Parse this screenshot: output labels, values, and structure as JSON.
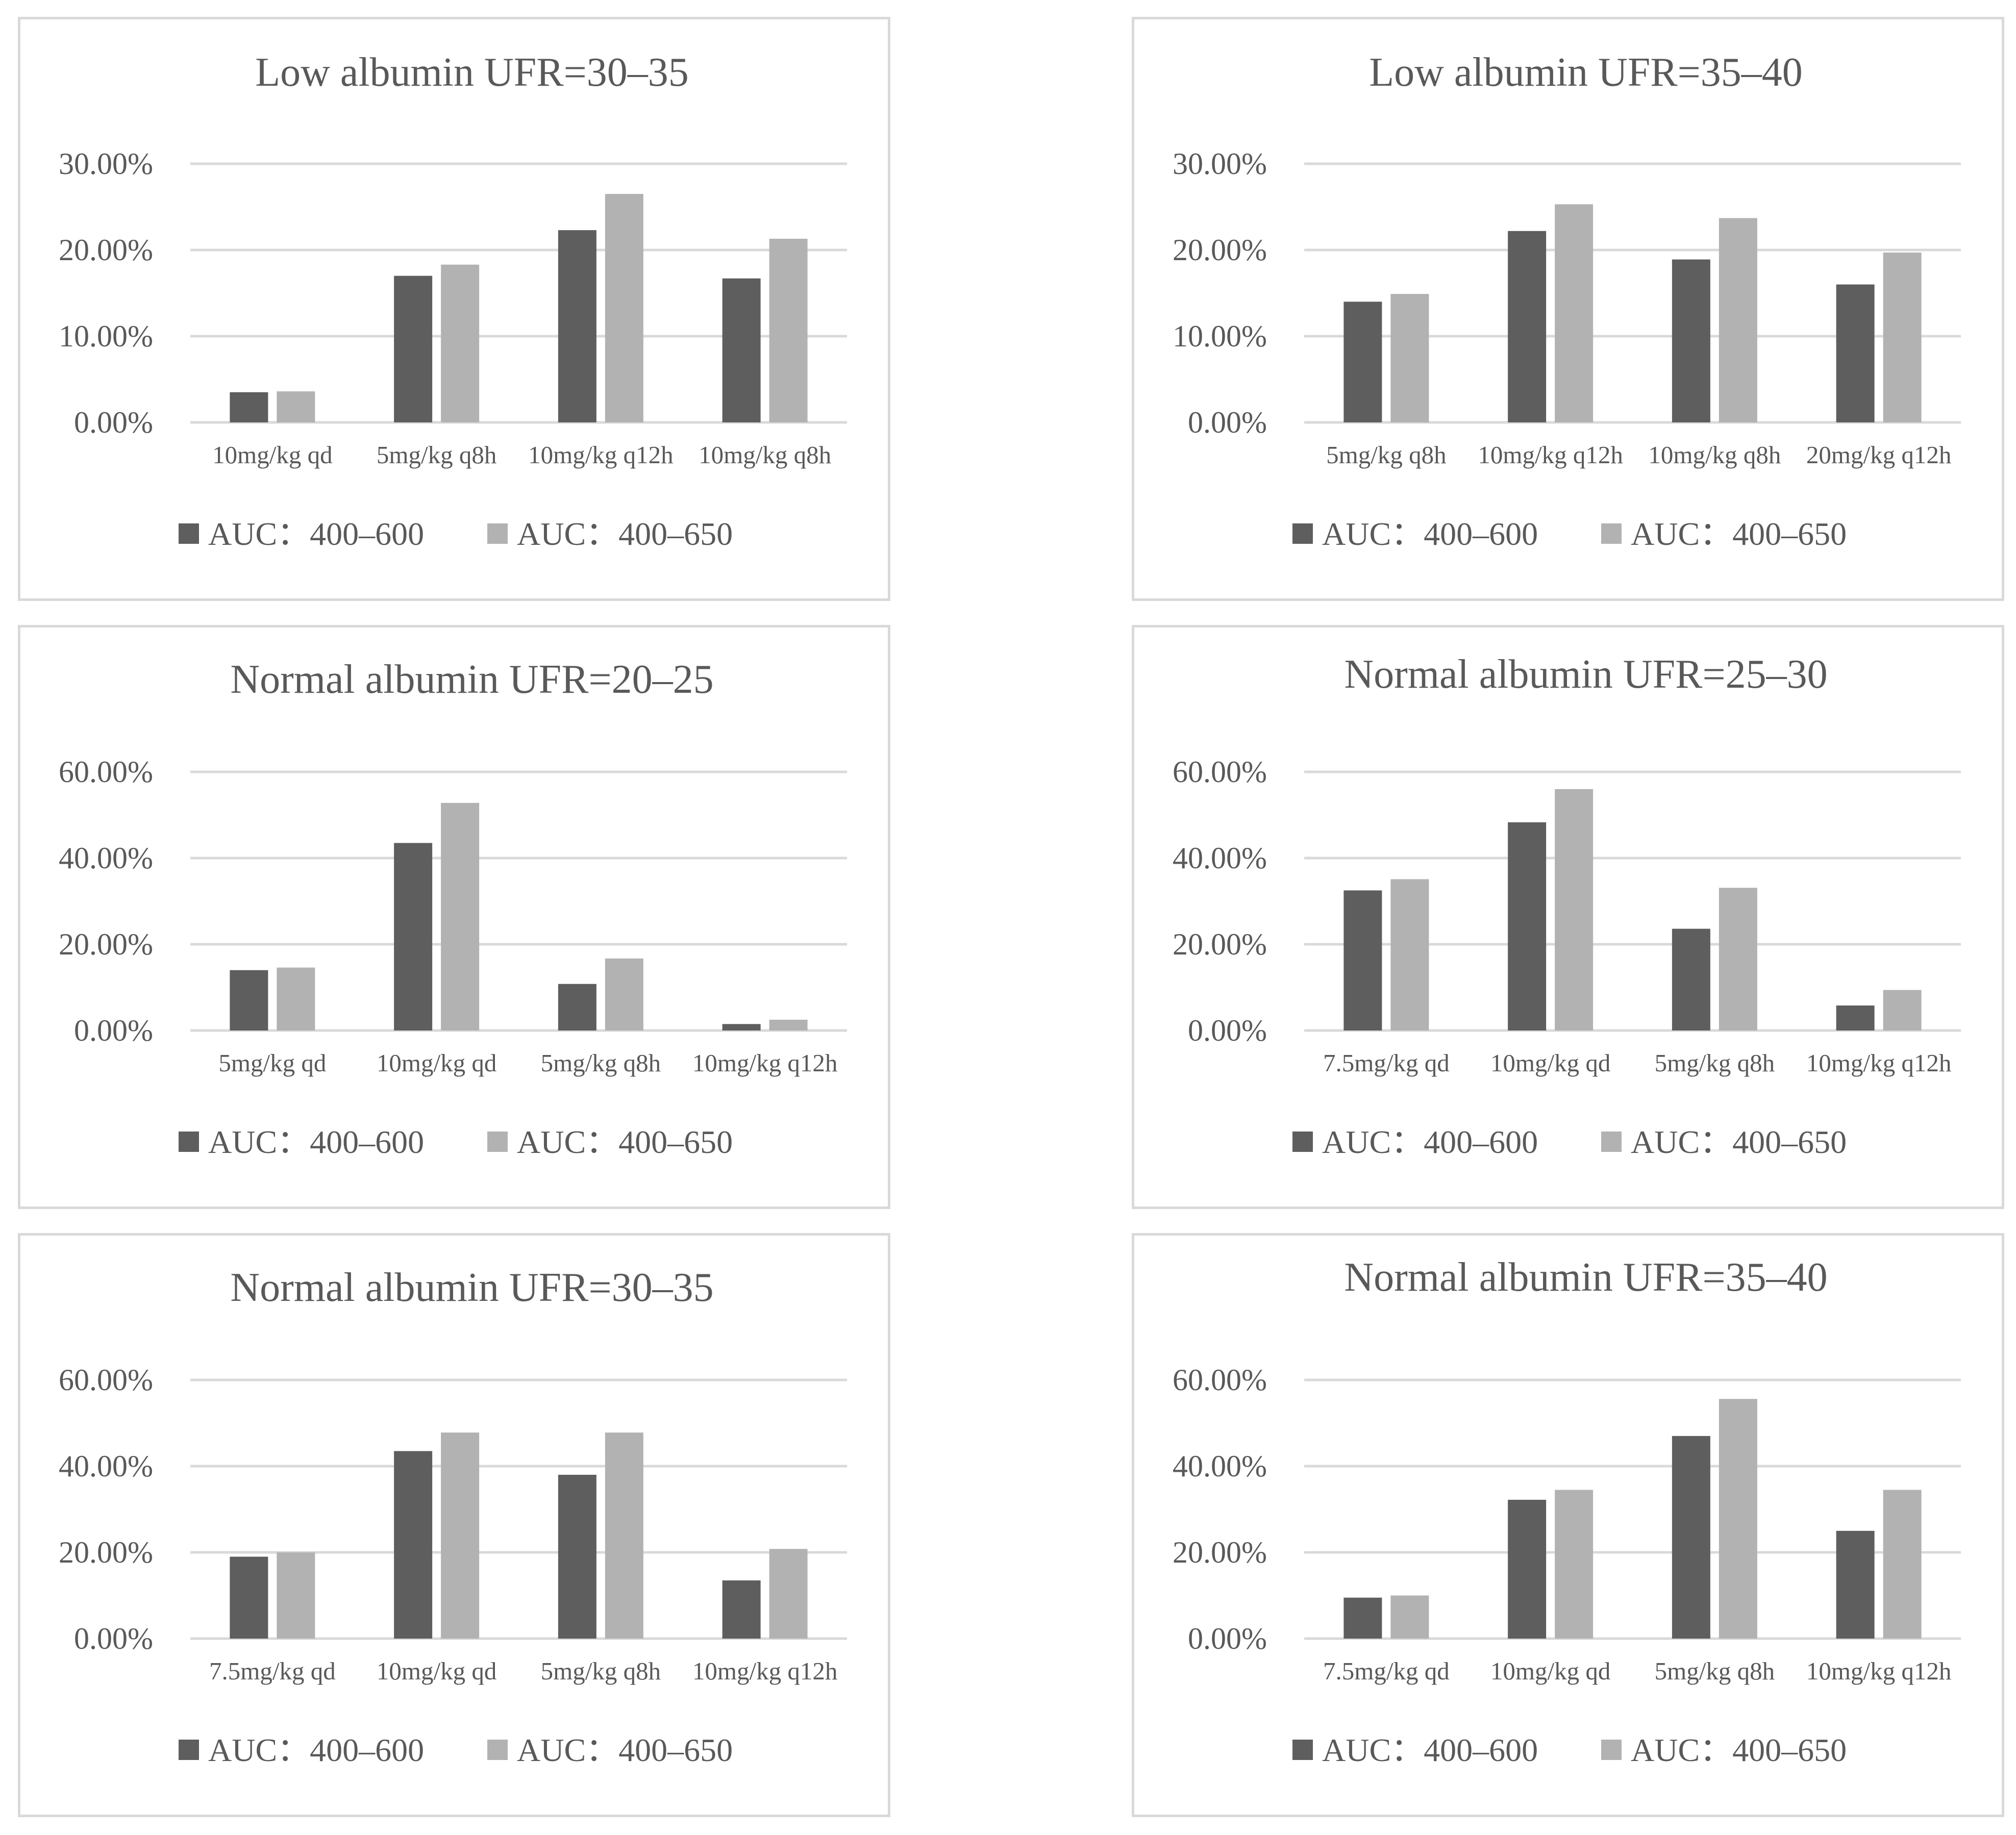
{
  "legend": [
    "AUC：400–600",
    "AUC：400–650"
  ],
  "colors": {
    "series_a": "#5e5e5e",
    "series_b": "#b2b2b2",
    "grid": "#d9d9d9",
    "text": "#595959",
    "border": "#d9d9d9"
  },
  "chart_data": [
    {
      "type": "bar",
      "title": "Low albumin UFR=30–35",
      "categories": [
        "10mg/kg qd",
        "5mg/kg q8h",
        "10mg/kg q12h",
        "10mg/kg q8h"
      ],
      "yticks": [
        "0.00%",
        "10.00%",
        "20.00%",
        "30.00%"
      ],
      "ylim": [
        0,
        30
      ],
      "series": [
        {
          "name": "AUC：400–600",
          "values": [
            3.5,
            17.0,
            22.3,
            16.7
          ]
        },
        {
          "name": "AUC：400–650",
          "values": [
            3.6,
            18.3,
            26.5,
            21.3
          ]
        }
      ]
    },
    {
      "type": "bar",
      "title": "Low albumin UFR=35–40",
      "categories": [
        "5mg/kg q8h",
        "10mg/kg q12h",
        "10mg/kg q8h",
        "20mg/kg q12h"
      ],
      "yticks": [
        "0.00%",
        "10.00%",
        "20.00%",
        "30.00%"
      ],
      "ylim": [
        0,
        30
      ],
      "series": [
        {
          "name": "AUC：400–600",
          "values": [
            14.0,
            22.2,
            18.9,
            16.0
          ]
        },
        {
          "name": "AUC：400–650",
          "values": [
            14.9,
            25.3,
            23.7,
            19.7
          ]
        }
      ]
    },
    {
      "type": "bar",
      "title": "Normal albumin UFR=20–25",
      "categories": [
        "5mg/kg qd",
        "10mg/kg qd",
        "5mg/kg q8h",
        "10mg/kg q12h"
      ],
      "yticks": [
        "0.00%",
        "20.00%",
        "40.00%",
        "60.00%"
      ],
      "ylim": [
        0,
        60
      ],
      "series": [
        {
          "name": "AUC：400–600",
          "values": [
            14.0,
            43.5,
            10.8,
            1.5
          ]
        },
        {
          "name": "AUC：400–650",
          "values": [
            14.6,
            52.8,
            16.7,
            2.5
          ]
        }
      ]
    },
    {
      "type": "bar",
      "title": "Normal albumin UFR=25–30",
      "categories": [
        "7.5mg/kg qd",
        "10mg/kg qd",
        "5mg/kg q8h",
        "10mg/kg q12h"
      ],
      "yticks": [
        "0.00%",
        "20.00%",
        "40.00%",
        "60.00%"
      ],
      "ylim": [
        0,
        60
      ],
      "series": [
        {
          "name": "AUC：400–600",
          "values": [
            32.5,
            48.3,
            23.6,
            5.8
          ]
        },
        {
          "name": "AUC：400–650",
          "values": [
            35.1,
            56.0,
            33.1,
            9.4
          ]
        }
      ]
    },
    {
      "type": "bar",
      "title": "Normal albumin UFR=30–35",
      "categories": [
        "7.5mg/kg qd",
        "10mg/kg qd",
        "5mg/kg q8h",
        "10mg/kg q12h"
      ],
      "yticks": [
        "0.00%",
        "20.00%",
        "40.00%",
        "60.00%"
      ],
      "ylim": [
        0,
        60
      ],
      "series": [
        {
          "name": "AUC：400–600",
          "values": [
            19.0,
            43.5,
            38.0,
            13.5
          ]
        },
        {
          "name": "AUC：400–650",
          "values": [
            20.0,
            47.8,
            47.8,
            20.8
          ]
        }
      ]
    },
    {
      "type": "bar",
      "title": "Normal albumin UFR=35–40",
      "categories": [
        "7.5mg/kg qd",
        "10mg/kg qd",
        "5mg/kg q8h",
        "10mg/kg q12h"
      ],
      "yticks": [
        "0.00%",
        "20.00%",
        "40.00%",
        "60.00%"
      ],
      "ylim": [
        0,
        60
      ],
      "series": [
        {
          "name": "AUC：400–600",
          "values": [
            9.5,
            32.2,
            47.0,
            25.0
          ]
        },
        {
          "name": "AUC：400–650",
          "values": [
            10.0,
            34.5,
            55.6,
            34.5
          ]
        }
      ]
    }
  ]
}
